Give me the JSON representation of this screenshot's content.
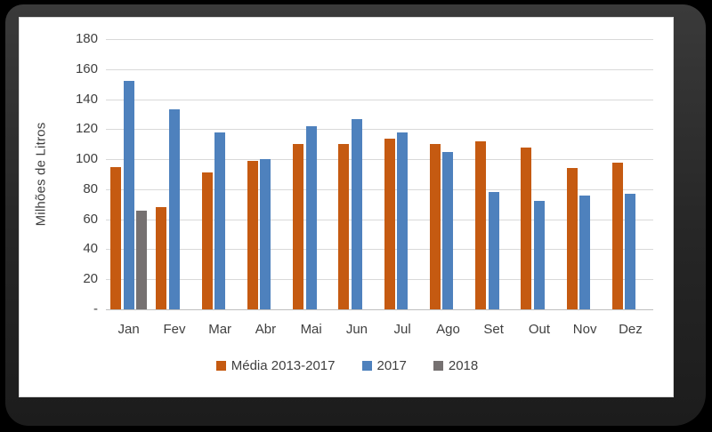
{
  "chart_data": {
    "type": "bar",
    "title": "",
    "ylabel": "Milhões de Litros",
    "xlabel": "",
    "categories": [
      "Jan",
      "Fev",
      "Mar",
      "Abr",
      "Mai",
      "Jun",
      "Jul",
      "Ago",
      "Set",
      "Out",
      "Nov",
      "Dez"
    ],
    "series": [
      {
        "name": "Média 2013-2017",
        "color": "#C55A11",
        "values": [
          95,
          68,
          91,
          99,
          110,
          110,
          114,
          110,
          112,
          108,
          94,
          98
        ]
      },
      {
        "name": "2017",
        "color": "#4E81BD",
        "values": [
          152,
          133,
          118,
          100,
          122,
          127,
          118,
          105,
          78,
          72,
          76,
          77
        ]
      },
      {
        "name": "2018",
        "color": "#767171",
        "values": [
          66,
          null,
          null,
          null,
          null,
          null,
          null,
          null,
          null,
          null,
          null,
          null
        ]
      }
    ],
    "ylim": [
      0,
      180
    ],
    "ytick_step": 20,
    "ytick_labels": [
      "180",
      "160",
      "140",
      "120",
      "100",
      "80",
      "60",
      "40",
      "20",
      "-"
    ],
    "zero_label": "-",
    "grid": true,
    "legend_position": "bottom"
  },
  "colors": {
    "background": "#000000",
    "frame": "#2b2b2b",
    "canvas": "#ffffff",
    "gridline": "#d9d9d9",
    "axis_line": "#bfbfbf",
    "text": "#3f3f3f"
  }
}
